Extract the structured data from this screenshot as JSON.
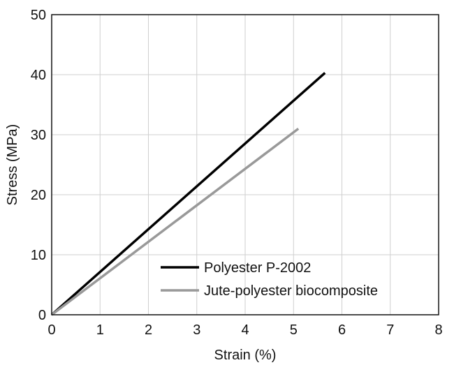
{
  "chart_data": {
    "type": "line",
    "title": "",
    "xlabel": "Strain (%)",
    "ylabel": "Stress (MPa)",
    "xlim": [
      0,
      8
    ],
    "ylim": [
      0,
      50
    ],
    "xticks": [
      "0",
      "1",
      "2",
      "3",
      "4",
      "5",
      "6",
      "7",
      "8"
    ],
    "yticks": [
      "0",
      "10",
      "20",
      "30",
      "40",
      "50"
    ],
    "grid": true,
    "legend_position": "bottom-right",
    "series": [
      {
        "name": "Polyester P-2002",
        "color": "#000000",
        "x": [
          0,
          5.65
        ],
        "y": [
          0,
          40.3
        ]
      },
      {
        "name": "Jute-polyester biocomposite",
        "color": "#999999",
        "x": [
          0,
          5.1
        ],
        "y": [
          0,
          31
        ]
      }
    ]
  }
}
